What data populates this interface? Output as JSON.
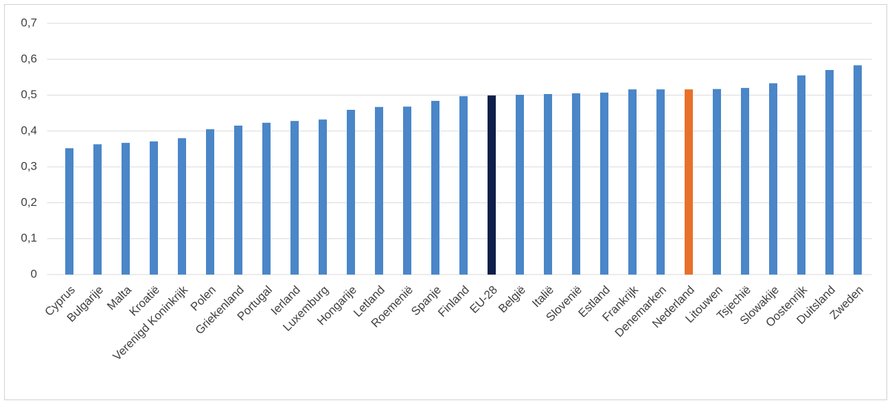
{
  "chart_data": {
    "type": "bar",
    "categories": [
      "Cyprus",
      "Bulgarije",
      "Malta",
      "Kroatië",
      "Verenigd Koninkrijk",
      "Polen",
      "Griekenland",
      "Portugal",
      "Ierland",
      "Luxemburg",
      "Hongarije",
      "Letland",
      "Roemenië",
      "Spanje",
      "Finland",
      "EU-28",
      "België",
      "Italië",
      "Slovenië",
      "Estland",
      "Frankrijk",
      "Denemarken",
      "Nederland",
      "Litouwen",
      "Tsjechië",
      "Slowakije",
      "Oostenrijk",
      "Duitsland",
      "Zweden"
    ],
    "values": [
      0.352,
      0.363,
      0.367,
      0.371,
      0.38,
      0.405,
      0.415,
      0.423,
      0.428,
      0.432,
      0.459,
      0.467,
      0.468,
      0.484,
      0.497,
      0.499,
      0.501,
      0.503,
      0.505,
      0.507,
      0.516,
      0.516,
      0.516,
      0.517,
      0.52,
      0.533,
      0.555,
      0.57,
      0.583
    ],
    "colors": [
      "#4a86c8",
      "#4a86c8",
      "#4a86c8",
      "#4a86c8",
      "#4a86c8",
      "#4a86c8",
      "#4a86c8",
      "#4a86c8",
      "#4a86c8",
      "#4a86c8",
      "#4a86c8",
      "#4a86c8",
      "#4a86c8",
      "#4a86c8",
      "#4a86c8",
      "#0f1f4a",
      "#4a86c8",
      "#4a86c8",
      "#4a86c8",
      "#4a86c8",
      "#4a86c8",
      "#4a86c8",
      "#e8702a",
      "#4a86c8",
      "#4a86c8",
      "#4a86c8",
      "#4a86c8",
      "#4a86c8",
      "#4a86c8"
    ],
    "ylim": [
      0,
      0.7
    ],
    "yticks": [
      0,
      {
        "value": 0.1,
        "label": "0,1"
      },
      {
        "value": 0.2,
        "label": "0,2"
      },
      {
        "value": 0.3,
        "label": "0,3"
      },
      {
        "value": 0.4,
        "label": "0,4"
      },
      {
        "value": 0.5,
        "label": "0,5"
      },
      {
        "value": 0.6,
        "label": "0,6"
      },
      {
        "value": 0.7,
        "label": "0,7"
      }
    ],
    "grid": true
  }
}
